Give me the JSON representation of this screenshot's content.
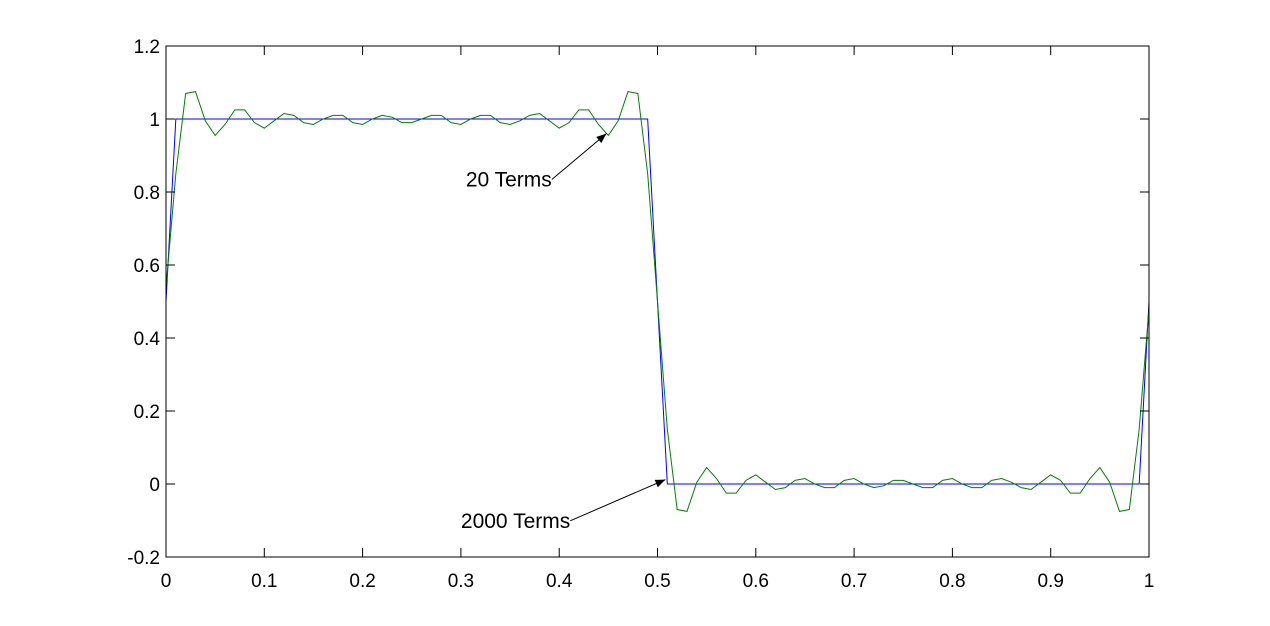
{
  "chart_data": {
    "type": "line",
    "title": "",
    "xlabel": "",
    "ylabel": "",
    "xlim": [
      0,
      1
    ],
    "ylim": [
      -0.2,
      1.2
    ],
    "x_ticks": [
      "0",
      "0.1",
      "0.2",
      "0.3",
      "0.4",
      "0.5",
      "0.6",
      "0.7",
      "0.8",
      "0.9",
      "1"
    ],
    "y_ticks": [
      "-0.2",
      "0",
      "0.2",
      "0.4",
      "0.6",
      "0.8",
      "1",
      "1.2"
    ],
    "grid": false,
    "legend": "none",
    "series": [
      {
        "color": "#0000ff",
        "terms": 2000,
        "x": [
          0,
          0.01,
          0.49,
          0.51,
          0.99,
          1
        ],
        "y": [
          0.5,
          1,
          1,
          0,
          0,
          0.5
        ]
      },
      {
        "color": "#008000",
        "terms": 20,
        "x": [
          0,
          0.01,
          0.02,
          0.03,
          0.04,
          0.05,
          0.06,
          0.07,
          0.08,
          0.09,
          0.1,
          0.11,
          0.12,
          0.13,
          0.14,
          0.15,
          0.16,
          0.17,
          0.18,
          0.19,
          0.2,
          0.21,
          0.22,
          0.23,
          0.24,
          0.25,
          0.26,
          0.27,
          0.28,
          0.29,
          0.3,
          0.31,
          0.32,
          0.33,
          0.34,
          0.35,
          0.36,
          0.37,
          0.38,
          0.39,
          0.4,
          0.41,
          0.42,
          0.43,
          0.44,
          0.45,
          0.46,
          0.47,
          0.48,
          0.49,
          0.5,
          0.51,
          0.52,
          0.53,
          0.54,
          0.55,
          0.56,
          0.57,
          0.58,
          0.59,
          0.6,
          0.61,
          0.62,
          0.63,
          0.64,
          0.65,
          0.66,
          0.67,
          0.68,
          0.69,
          0.7,
          0.71,
          0.72,
          0.73,
          0.74,
          0.75,
          0.76,
          0.77,
          0.78,
          0.79,
          0.8,
          0.81,
          0.82,
          0.83,
          0.84,
          0.85,
          0.86,
          0.87,
          0.88,
          0.89,
          0.9,
          0.91,
          0.92,
          0.93,
          0.94,
          0.95,
          0.96,
          0.97,
          0.98,
          0.99,
          1
        ],
        "y": [
          0.54,
          0.85,
          1.07,
          1.075,
          0.995,
          0.955,
          0.985,
          1.025,
          1.025,
          0.99,
          0.975,
          0.995,
          1.015,
          1.01,
          0.99,
          0.985,
          1,
          1.01,
          1.01,
          0.99,
          0.985,
          1,
          1.01,
          1.005,
          0.99,
          0.99,
          1,
          1.01,
          1.01,
          0.99,
          0.985,
          1,
          1.01,
          1.01,
          0.99,
          0.985,
          0.995,
          1.01,
          1.015,
          0.995,
          0.975,
          0.99,
          1.025,
          1.025,
          0.985,
          0.955,
          0.995,
          1.075,
          1.07,
          0.85,
          0.5,
          0.15,
          -0.07,
          -0.075,
          0.005,
          0.045,
          0.015,
          -0.025,
          -0.025,
          0.01,
          0.025,
          0.005,
          -0.015,
          -0.01,
          0.01,
          0.015,
          0,
          -0.01,
          -0.01,
          0.01,
          0.015,
          0,
          -0.01,
          -0.005,
          0.01,
          0.01,
          0,
          -0.01,
          -0.01,
          0.01,
          0.015,
          0,
          -0.01,
          -0.01,
          0.01,
          0.015,
          0.005,
          -0.01,
          -0.015,
          0.005,
          0.025,
          0.01,
          -0.025,
          -0.025,
          0.015,
          0.045,
          0.005,
          -0.075,
          -0.07,
          0.15,
          0.48
        ]
      }
    ],
    "annotations": [
      {
        "text": "20 Terms",
        "text_x": 0.305,
        "text_y": 0.815,
        "arrow_to_x": 0.448,
        "arrow_to_y": 0.96
      },
      {
        "text": "2000 Terms",
        "text_x": 0.3,
        "text_y": -0.12,
        "arrow_to_x": 0.508,
        "arrow_to_y": 0.012
      }
    ]
  }
}
